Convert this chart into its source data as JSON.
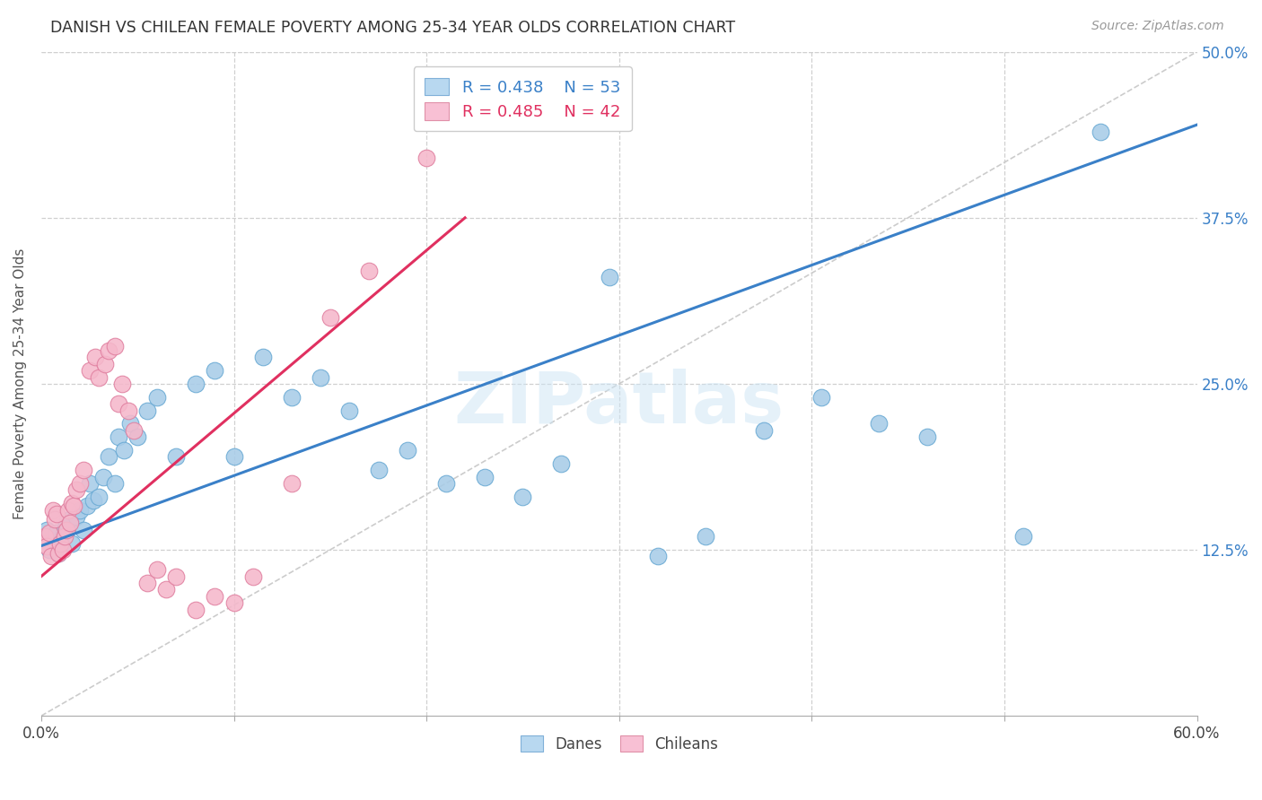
{
  "title": "DANISH VS CHILEAN FEMALE POVERTY AMONG 25-34 YEAR OLDS CORRELATION CHART",
  "source": "Source: ZipAtlas.com",
  "ylabel": "Female Poverty Among 25-34 Year Olds",
  "xlim": [
    0.0,
    0.6
  ],
  "ylim": [
    0.0,
    0.5
  ],
  "blue_color": "#a8cce8",
  "blue_edge_color": "#6aaad4",
  "pink_color": "#f5b8cb",
  "pink_edge_color": "#e080a0",
  "blue_line_color": "#3a80c8",
  "pink_line_color": "#e03060",
  "diag_color": "#cccccc",
  "grid_color": "#d0d0d0",
  "legend_blue_R": "R = 0.438",
  "legend_blue_N": "N = 53",
  "legend_pink_R": "R = 0.485",
  "legend_pink_N": "N = 42",
  "watermark": "ZIPatlas",
  "danes_x": [
    0.002,
    0.003,
    0.004,
    0.005,
    0.006,
    0.007,
    0.008,
    0.009,
    0.01,
    0.011,
    0.012,
    0.013,
    0.015,
    0.016,
    0.018,
    0.02,
    0.022,
    0.024,
    0.025,
    0.027,
    0.03,
    0.032,
    0.035,
    0.038,
    0.04,
    0.043,
    0.046,
    0.05,
    0.055,
    0.06,
    0.07,
    0.08,
    0.09,
    0.1,
    0.115,
    0.13,
    0.145,
    0.16,
    0.175,
    0.19,
    0.21,
    0.23,
    0.25,
    0.27,
    0.295,
    0.32,
    0.345,
    0.375,
    0.405,
    0.435,
    0.46,
    0.51,
    0.55
  ],
  "danes_y": [
    0.135,
    0.14,
    0.125,
    0.13,
    0.128,
    0.132,
    0.138,
    0.122,
    0.128,
    0.135,
    0.14,
    0.145,
    0.148,
    0.13,
    0.15,
    0.155,
    0.14,
    0.158,
    0.175,
    0.162,
    0.165,
    0.18,
    0.195,
    0.175,
    0.21,
    0.2,
    0.22,
    0.21,
    0.23,
    0.24,
    0.195,
    0.25,
    0.26,
    0.195,
    0.27,
    0.24,
    0.255,
    0.23,
    0.185,
    0.2,
    0.175,
    0.18,
    0.165,
    0.19,
    0.33,
    0.12,
    0.135,
    0.215,
    0.24,
    0.22,
    0.21,
    0.135,
    0.44
  ],
  "chileans_x": [
    0.001,
    0.002,
    0.003,
    0.004,
    0.005,
    0.006,
    0.007,
    0.008,
    0.009,
    0.01,
    0.011,
    0.012,
    0.013,
    0.014,
    0.015,
    0.016,
    0.017,
    0.018,
    0.02,
    0.022,
    0.025,
    0.028,
    0.03,
    0.033,
    0.035,
    0.038,
    0.04,
    0.042,
    0.045,
    0.048,
    0.055,
    0.06,
    0.065,
    0.07,
    0.08,
    0.09,
    0.1,
    0.11,
    0.13,
    0.15,
    0.17,
    0.2
  ],
  "chileans_y": [
    0.13,
    0.135,
    0.128,
    0.138,
    0.12,
    0.155,
    0.148,
    0.152,
    0.122,
    0.13,
    0.125,
    0.135,
    0.14,
    0.155,
    0.145,
    0.16,
    0.158,
    0.17,
    0.175,
    0.185,
    0.26,
    0.27,
    0.255,
    0.265,
    0.275,
    0.278,
    0.235,
    0.25,
    0.23,
    0.215,
    0.1,
    0.11,
    0.095,
    0.105,
    0.08,
    0.09,
    0.085,
    0.105,
    0.175,
    0.3,
    0.335,
    0.42
  ],
  "blue_line_x": [
    0.0,
    0.6
  ],
  "blue_line_y": [
    0.128,
    0.445
  ],
  "pink_line_x": [
    0.0,
    0.22
  ],
  "pink_line_y": [
    0.105,
    0.375
  ]
}
